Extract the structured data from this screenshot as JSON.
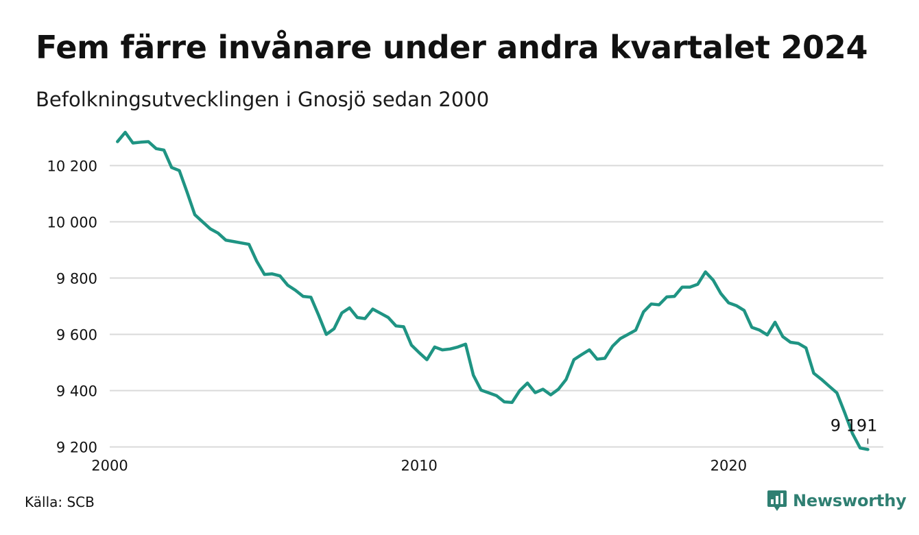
{
  "title": "Fem färre invånare under andra kvartalet 2024",
  "subtitle": "Befolkningsutvecklingen i Gnosjö sedan 2000",
  "source": "Källa: SCB",
  "brand": {
    "name": "Newsworthy",
    "icon": "newsworthy-logo-icon",
    "color": "#2f7f72"
  },
  "colors": {
    "line": "#1f9483",
    "grid": "#d9d9d9"
  },
  "chart_data": {
    "type": "line",
    "title": "Fem färre invånare under andra kvartalet 2024",
    "subtitle": "Befolkningsutvecklingen i Gnosjö sedan 2000",
    "xlabel": "",
    "ylabel": "",
    "x_unit": "year",
    "xlim": [
      2000,
      2025
    ],
    "ylim": [
      9160,
      10330
    ],
    "x_ticks": [
      2000,
      2010,
      2020
    ],
    "x_tick_labels": [
      "2000",
      "2010",
      "2020"
    ],
    "y_ticks": [
      9200,
      9400,
      9600,
      9800,
      10000,
      10200
    ],
    "y_tick_labels": [
      "9 200",
      "9 400",
      "9 600",
      "9 800",
      "10 000",
      "10 200"
    ],
    "grid": "horizontal",
    "legend": "none",
    "end_label": "9 191",
    "series": [
      {
        "x": [
          2000.25,
          2000.5,
          2000.75,
          2001.0,
          2001.25,
          2001.5,
          2001.75,
          2002.0,
          2002.25,
          2002.5,
          2002.75,
          2003.0,
          2003.25,
          2003.5,
          2003.75,
          2004.0,
          2004.25,
          2004.5,
          2004.75,
          2005.0,
          2005.25,
          2005.5,
          2005.75,
          2006.0,
          2006.25,
          2006.5,
          2006.75,
          2007.0,
          2007.25,
          2007.5,
          2007.75,
          2008.0,
          2008.25,
          2008.5,
          2008.75,
          2009.0,
          2009.25,
          2009.5,
          2009.75,
          2010.0,
          2010.25,
          2010.5,
          2010.75,
          2011.0,
          2011.25,
          2011.5,
          2011.75,
          2012.0,
          2012.25,
          2012.5,
          2012.75,
          2013.0,
          2013.25,
          2013.5,
          2013.75,
          2014.0,
          2014.25,
          2014.5,
          2014.75,
          2015.0,
          2015.25,
          2015.5,
          2015.75,
          2016.0,
          2016.25,
          2016.5,
          2016.75,
          2017.0,
          2017.25,
          2017.5,
          2017.75,
          2018.0,
          2018.25,
          2018.5,
          2018.75,
          2019.0,
          2019.25,
          2019.5,
          2019.75,
          2020.0,
          2020.25,
          2020.5,
          2020.75,
          2021.0,
          2021.25,
          2021.5,
          2021.75,
          2022.0,
          2022.25,
          2022.5,
          2022.75,
          2023.0,
          2023.25,
          2023.5,
          2023.75,
          2024.0,
          2024.25,
          2024.5
        ],
        "y": [
          10285,
          10318,
          10280,
          10283,
          10285,
          10260,
          10255,
          10193,
          10182,
          10105,
          10025,
          10000,
          9975,
          9960,
          9935,
          9930,
          9925,
          9920,
          9860,
          9813,
          9815,
          9808,
          9775,
          9757,
          9735,
          9732,
          9668,
          9600,
          9620,
          9676,
          9694,
          9660,
          9656,
          9690,
          9675,
          9660,
          9630,
          9627,
          9562,
          9535,
          9510,
          9555,
          9545,
          9548,
          9555,
          9565,
          9455,
          9402,
          9392,
          9382,
          9360,
          9358,
          9400,
          9427,
          9393,
          9405,
          9385,
          9405,
          9440,
          9510,
          9528,
          9545,
          9512,
          9515,
          9558,
          9585,
          9600,
          9615,
          9680,
          9708,
          9705,
          9733,
          9735,
          9768,
          9768,
          9778,
          9822,
          9793,
          9745,
          9712,
          9702,
          9685,
          9625,
          9615,
          9598,
          9643,
          9592,
          9572,
          9568,
          9552,
          9462,
          9440,
          9416,
          9392,
          9322,
          9248,
          9196,
          9191
        ]
      }
    ]
  }
}
